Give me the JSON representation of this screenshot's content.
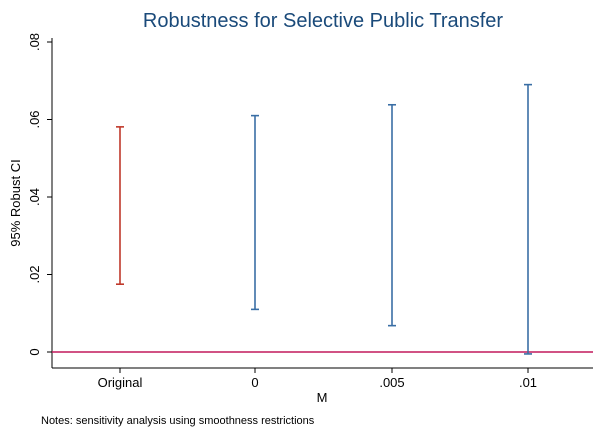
{
  "chart_data": {
    "type": "interval",
    "title": "Robustness for Selective Public Transfer",
    "xlabel": "M",
    "ylabel": "95% Robust CI",
    "note": "Notes: sensitivity analysis using smoothness restrictions",
    "categories": [
      "Original",
      "0",
      ".005",
      ".01"
    ],
    "intervals": [
      {
        "category": "Original",
        "lb": 0.0175,
        "ub": 0.0581,
        "color": "#c0392b"
      },
      {
        "category": "0",
        "lb": 0.011,
        "ub": 0.061,
        "color": "#3a6ea5"
      },
      {
        "category": ".005",
        "lb": 0.0068,
        "ub": 0.0638,
        "color": "#3a6ea5"
      },
      {
        "category": ".01",
        "lb": -0.0005,
        "ub": 0.069,
        "color": "#3a6ea5"
      }
    ],
    "yticks": [
      0,
      0.02,
      0.04,
      0.06,
      0.08
    ],
    "ytick_labels": [
      "0",
      ".02",
      ".04",
      ".06",
      ".08"
    ],
    "ylim": [
      -0.003,
      0.081
    ],
    "reference_line": {
      "y": 0,
      "color": "#c2185b"
    },
    "grid": false,
    "legend": "none"
  }
}
